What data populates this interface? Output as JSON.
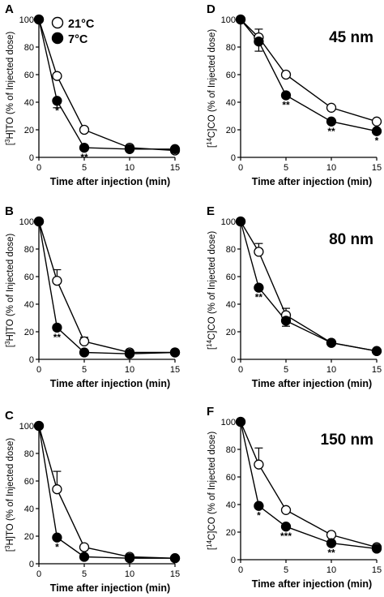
{
  "legend": {
    "warm": "21°C",
    "cold": "7°C"
  },
  "colors": {
    "warm_fill": "#ffffff",
    "cold_fill": "#000000",
    "stroke": "#000000"
  },
  "chart_data": [
    {
      "id": "A",
      "type": "line",
      "letter": "A",
      "size_label": "",
      "ylabel_pre": "[",
      "ylabel_sup": "3",
      "ylabel_post": "H]TO (% of Injected dose)",
      "xlabel": "Time after injection (min)",
      "xlim": [
        0,
        15
      ],
      "ylim": [
        0,
        100
      ],
      "x_ticks": [
        0,
        5,
        10,
        15
      ],
      "y_ticks": [
        0,
        20,
        40,
        60,
        80,
        100
      ],
      "x": [
        0,
        2,
        5,
        10,
        15
      ],
      "series": [
        {
          "name": "21°C",
          "marker": "open",
          "values": [
            100,
            59,
            20,
            7,
            5
          ],
          "err_up": [
            0,
            0,
            0,
            0,
            0
          ]
        },
        {
          "name": "7°C",
          "marker": "filled",
          "values": [
            100,
            41,
            7,
            6,
            6
          ],
          "err_down": [
            0,
            5,
            0,
            0,
            0
          ]
        }
      ],
      "annotations": [
        {
          "x": 2,
          "text": "*"
        },
        {
          "x": 5,
          "text": "**"
        }
      ]
    },
    {
      "id": "D",
      "type": "line",
      "letter": "D",
      "size_label": "45 nm",
      "ylabel_pre": "[",
      "ylabel_sup": "14",
      "ylabel_post": "C]CO (% of Injected dose)",
      "xlabel": "Time after injection (min)",
      "xlim": [
        0,
        15
      ],
      "ylim": [
        0,
        100
      ],
      "x_ticks": [
        0,
        5,
        10,
        15
      ],
      "y_ticks": [
        0,
        20,
        40,
        60,
        80,
        100
      ],
      "x": [
        0,
        2,
        5,
        10,
        15
      ],
      "series": [
        {
          "name": "21°C",
          "marker": "open",
          "values": [
            100,
            87,
            60,
            36,
            26
          ],
          "err_up": [
            0,
            6,
            0,
            0,
            0
          ]
        },
        {
          "name": "7°C",
          "marker": "filled",
          "values": [
            100,
            84,
            45,
            26,
            19
          ],
          "err_down": [
            0,
            7,
            0,
            0,
            0
          ]
        }
      ],
      "annotations": [
        {
          "x": 5,
          "text": "**"
        },
        {
          "x": 10,
          "text": "**"
        },
        {
          "x": 15,
          "text": "*"
        }
      ]
    },
    {
      "id": "B",
      "type": "line",
      "letter": "B",
      "size_label": "",
      "ylabel_pre": "[",
      "ylabel_sup": "3",
      "ylabel_post": "H]TO (% of Injected dose)",
      "xlabel": "Time after injection (min)",
      "xlim": [
        0,
        15
      ],
      "ylim": [
        0,
        100
      ],
      "x_ticks": [
        0,
        5,
        10,
        15
      ],
      "y_ticks": [
        0,
        20,
        40,
        60,
        80,
        100
      ],
      "x": [
        0,
        2,
        5,
        10,
        15
      ],
      "series": [
        {
          "name": "21°C",
          "marker": "open",
          "values": [
            100,
            57,
            13,
            5,
            5
          ],
          "err_up": [
            0,
            8,
            3,
            0,
            0
          ]
        },
        {
          "name": "7°C",
          "marker": "filled",
          "values": [
            100,
            23,
            5,
            4,
            5
          ],
          "err_down": [
            0,
            0,
            0,
            0,
            0
          ]
        }
      ],
      "annotations": [
        {
          "x": 2,
          "text": "**"
        }
      ]
    },
    {
      "id": "E",
      "type": "line",
      "letter": "E",
      "size_label": "80 nm",
      "ylabel_pre": "[",
      "ylabel_sup": "14",
      "ylabel_post": "C]CO (% of Injected dose)",
      "xlabel": "Time after injection (min)",
      "xlim": [
        0,
        15
      ],
      "ylim": [
        0,
        100
      ],
      "x_ticks": [
        0,
        5,
        10,
        15
      ],
      "y_ticks": [
        0,
        20,
        40,
        60,
        80,
        100
      ],
      "x": [
        0,
        2,
        5,
        10,
        15
      ],
      "series": [
        {
          "name": "21°C",
          "marker": "open",
          "values": [
            100,
            78,
            32,
            12,
            6
          ],
          "err_up": [
            0,
            6,
            5,
            0,
            0
          ]
        },
        {
          "name": "7°C",
          "marker": "filled",
          "values": [
            100,
            52,
            28,
            12,
            6
          ],
          "err_down": [
            0,
            0,
            4,
            0,
            0
          ]
        }
      ],
      "annotations": [
        {
          "x": 2,
          "text": "**"
        }
      ]
    },
    {
      "id": "C",
      "type": "line",
      "letter": "C",
      "size_label": "",
      "ylabel_pre": "[",
      "ylabel_sup": "3",
      "ylabel_post": "H]TO (% of Injected dose)",
      "xlabel": "Time after injection (min)",
      "xlim": [
        0,
        15
      ],
      "ylim": [
        0,
        100
      ],
      "x_ticks": [
        0,
        5,
        10,
        15
      ],
      "y_ticks": [
        0,
        20,
        40,
        60,
        80,
        100
      ],
      "x": [
        0,
        2,
        5,
        10,
        15
      ],
      "series": [
        {
          "name": "21°C",
          "marker": "open",
          "values": [
            100,
            54,
            12,
            5,
            4
          ],
          "err_up": [
            0,
            13,
            0,
            0,
            0
          ]
        },
        {
          "name": "7°C",
          "marker": "filled",
          "values": [
            100,
            19,
            5,
            4,
            4
          ],
          "err_down": [
            0,
            0,
            0,
            0,
            0
          ]
        }
      ],
      "annotations": [
        {
          "x": 2,
          "text": "*"
        }
      ]
    },
    {
      "id": "F",
      "type": "line",
      "letter": "F",
      "size_label": "150 nm",
      "ylabel_pre": "[",
      "ylabel_sup": "14",
      "ylabel_post": "C]CO (% of Injected dose)",
      "xlabel": "Time after injection (min)",
      "xlim": [
        0,
        15
      ],
      "ylim": [
        0,
        100
      ],
      "x_ticks": [
        0,
        5,
        10,
        15
      ],
      "y_ticks": [
        0,
        20,
        40,
        60,
        80,
        100
      ],
      "x": [
        0,
        2,
        5,
        10,
        15
      ],
      "series": [
        {
          "name": "21°C",
          "marker": "open",
          "values": [
            100,
            69,
            36,
            18,
            9
          ],
          "err_up": [
            0,
            12,
            0,
            0,
            0
          ]
        },
        {
          "name": "7°C",
          "marker": "filled",
          "values": [
            100,
            39,
            24,
            12,
            8
          ],
          "err_down": [
            0,
            0,
            0,
            0,
            0
          ]
        }
      ],
      "annotations": [
        {
          "x": 2,
          "text": "*"
        },
        {
          "x": 5,
          "text": "***"
        },
        {
          "x": 10,
          "text": "**"
        }
      ]
    }
  ]
}
